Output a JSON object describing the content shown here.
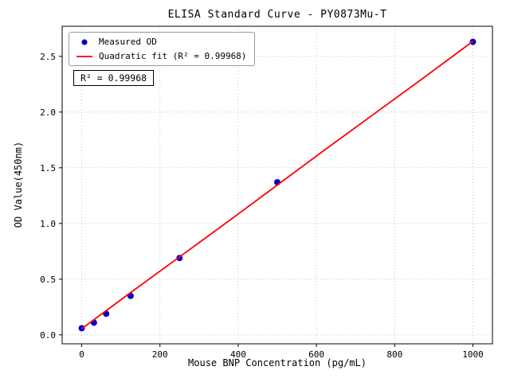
{
  "chart_data": {
    "type": "scatter",
    "title": "ELISA Standard Curve - PY0873Mu-T",
    "xlabel": "Mouse BNP Concentration (pg/mL)",
    "ylabel": "OD Value(450nm)",
    "xlim": [
      -50,
      1050
    ],
    "ylim": [
      -0.08,
      2.77
    ],
    "xticks": [
      0,
      200,
      400,
      600,
      800,
      1000
    ],
    "xtick_labels": [
      "0",
      "200",
      "400",
      "600",
      "800",
      "1000"
    ],
    "yticks": [
      0.0,
      0.5,
      1.0,
      1.5,
      2.0,
      2.5
    ],
    "ytick_labels": [
      "0.0",
      "0.5",
      "1.0",
      "1.5",
      "2.0",
      "2.5"
    ],
    "grid": true,
    "grid_color": "#bdbdbd",
    "axis_color": "#000000",
    "series": [
      {
        "name": "Measured OD",
        "kind": "scatter",
        "color": "#0000cd",
        "x": [
          0,
          31.25,
          62.5,
          125,
          250,
          500,
          1000
        ],
        "y": [
          0.06,
          0.11,
          0.19,
          0.35,
          0.69,
          1.37,
          2.63
        ]
      },
      {
        "name": "Quadratic fit (R² = 0.99968)",
        "kind": "line",
        "color": "#ff0000",
        "x": [
          0,
          125,
          250,
          375,
          500,
          625,
          750,
          875,
          1000
        ],
        "y": [
          0.055,
          0.38,
          0.7,
          1.02,
          1.345,
          1.67,
          1.99,
          2.31,
          2.635
        ]
      }
    ],
    "legend": {
      "position": "upper-left",
      "entries": [
        {
          "label": "Measured OD",
          "marker": "dot",
          "color": "#0000cd"
        },
        {
          "label": "Quadratic fit (R² = 0.99968)",
          "marker": "line",
          "color": "#ff0000"
        }
      ]
    },
    "annotation": {
      "text": "R² = 0.99968"
    }
  }
}
